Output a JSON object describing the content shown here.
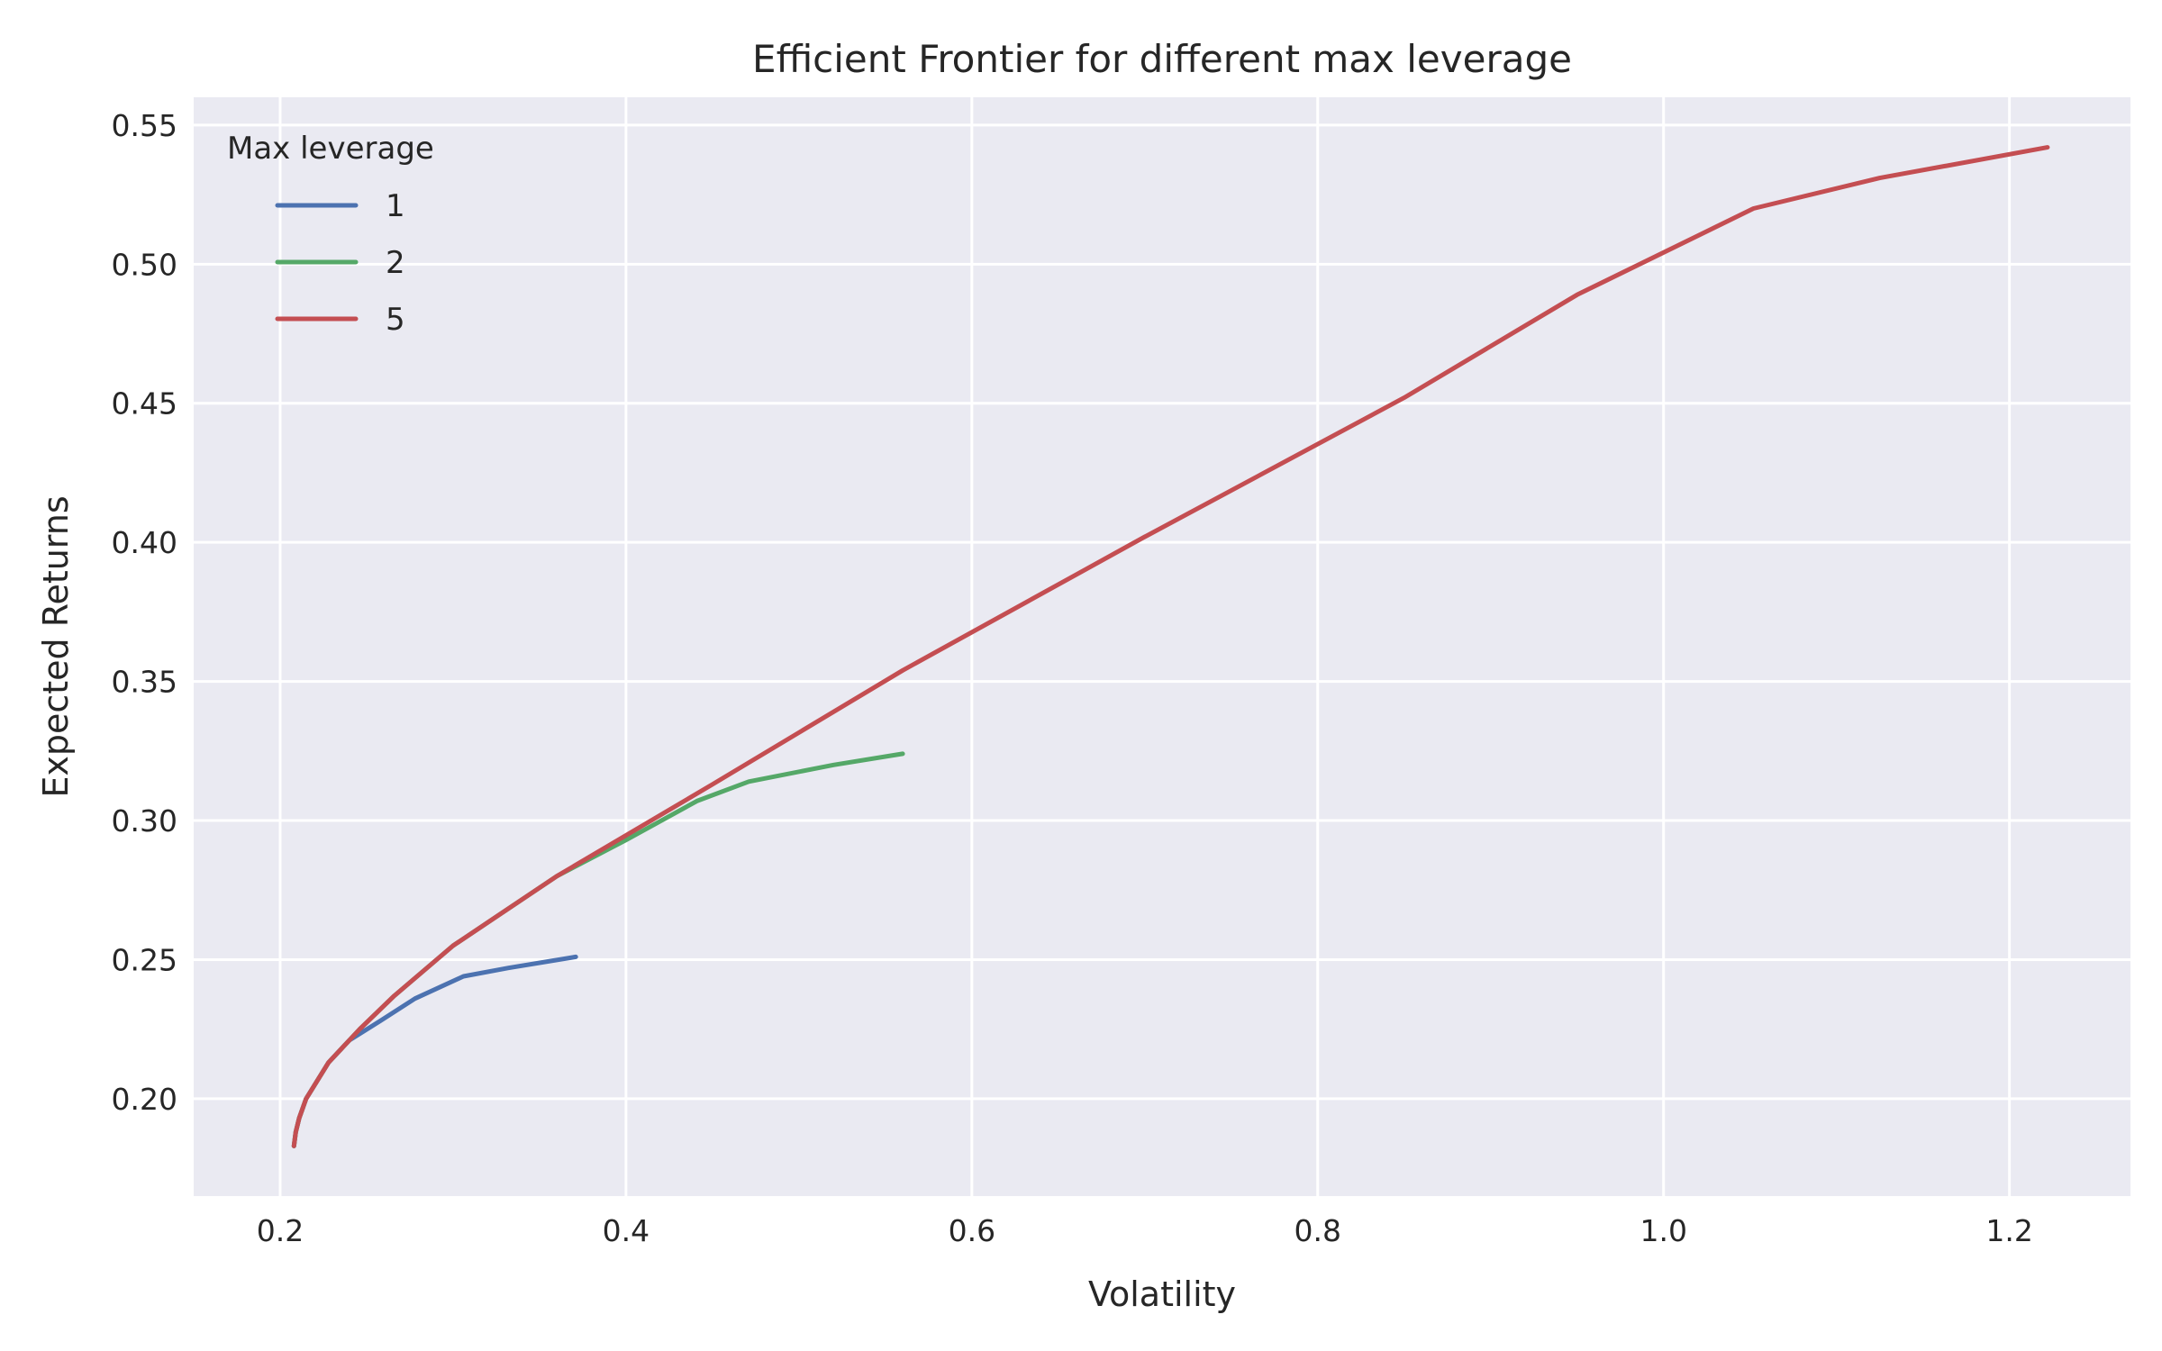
{
  "chart_data": {
    "type": "line",
    "title": "Efficient Frontier for different max leverage",
    "xlabel": "Volatility",
    "ylabel": "Expected Returns",
    "xlim": [
      0.15,
      1.27
    ],
    "ylim": [
      0.165,
      0.56
    ],
    "xticks": [
      0.2,
      0.4,
      0.6,
      0.8,
      1.0,
      1.2
    ],
    "xtick_labels": [
      "0.2",
      "0.4",
      "0.6",
      "0.8",
      "1.0",
      "1.2"
    ],
    "yticks": [
      0.2,
      0.25,
      0.3,
      0.35,
      0.4,
      0.45,
      0.5,
      0.55
    ],
    "ytick_labels": [
      "0.20",
      "0.25",
      "0.30",
      "0.35",
      "0.40",
      "0.45",
      "0.50",
      "0.55"
    ],
    "grid": true,
    "background": "#eaeaf2",
    "legend": {
      "title": "Max leverage",
      "placement": "top-left"
    },
    "series": [
      {
        "name": "1",
        "color": "#4c72b0",
        "x": [
          0.208,
          0.209,
          0.211,
          0.215,
          0.228,
          0.24,
          0.258,
          0.278,
          0.306,
          0.332,
          0.371
        ],
        "y": [
          0.183,
          0.188,
          0.193,
          0.2,
          0.213,
          0.221,
          0.228,
          0.236,
          0.244,
          0.247,
          0.251
        ]
      },
      {
        "name": "2",
        "color": "#55a868",
        "x": [
          0.208,
          0.209,
          0.211,
          0.215,
          0.228,
          0.246,
          0.266,
          0.3,
          0.36,
          0.4,
          0.441,
          0.471,
          0.52,
          0.56
        ],
        "y": [
          0.183,
          0.188,
          0.193,
          0.2,
          0.213,
          0.225,
          0.237,
          0.255,
          0.28,
          0.293,
          0.307,
          0.314,
          0.32,
          0.324
        ]
      },
      {
        "name": "5",
        "color": "#c44e52",
        "x": [
          0.208,
          0.209,
          0.211,
          0.215,
          0.228,
          0.246,
          0.266,
          0.3,
          0.36,
          0.45,
          0.56,
          0.7,
          0.85,
          0.95,
          1.052,
          1.125,
          1.222
        ],
        "y": [
          0.183,
          0.188,
          0.193,
          0.2,
          0.213,
          0.225,
          0.237,
          0.255,
          0.28,
          0.313,
          0.354,
          0.402,
          0.452,
          0.489,
          0.52,
          0.531,
          0.542
        ]
      }
    ]
  }
}
